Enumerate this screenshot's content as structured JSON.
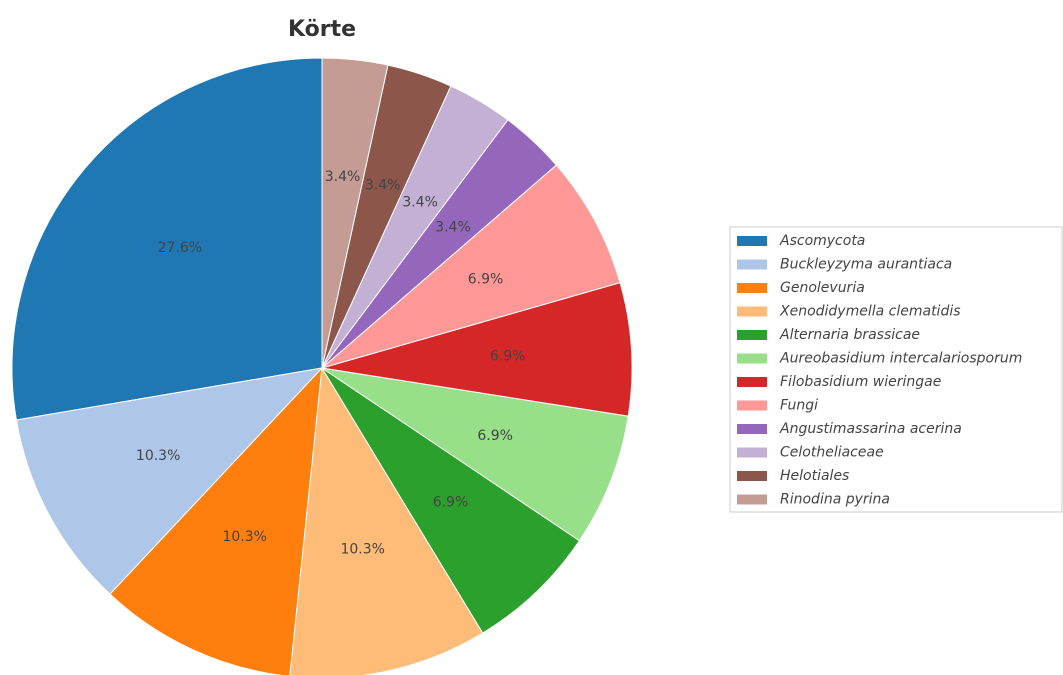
{
  "chart_data": {
    "type": "pie",
    "title": "Körte",
    "categories": [
      "Ascomycota",
      "Buckleyzyma aurantiaca",
      "Genolevuria",
      "Xenodidymella clematidis",
      "Alternaria brassicae",
      "Aureobasidium intercalariosporum",
      "Filobasidium wieringae",
      "Fungi",
      "Angustimassarina acerina",
      "Celotheliaceae",
      "Helotiales",
      "Rinodina pyrina"
    ],
    "values": [
      27.6,
      10.3,
      10.3,
      10.3,
      6.9,
      6.9,
      6.9,
      6.9,
      3.4,
      3.4,
      3.4,
      3.4
    ],
    "value_labels": [
      "27.6%",
      "10.3%",
      "10.3%",
      "10.3%",
      "6.9%",
      "6.9%",
      "6.9%",
      "6.9%",
      "3.4%",
      "3.4%",
      "3.4%",
      "3.4%"
    ],
    "colors": [
      "#1f77b4",
      "#aec7e8",
      "#ff7f0e",
      "#ffbb78",
      "#2ca02c",
      "#98df8a",
      "#d62728",
      "#ff9896",
      "#9467bd",
      "#c5b0d5",
      "#8c564b",
      "#c49c94"
    ],
    "direction": "counterclockwise",
    "legend": "right"
  }
}
